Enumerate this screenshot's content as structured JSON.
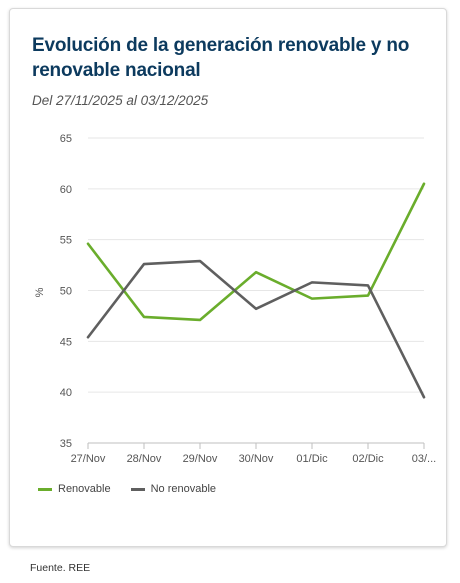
{
  "card": {
    "title": "Evolución de la generación renovable y no renovable nacional",
    "subtitle": "Del 27/11/2025 al 03/12/2025"
  },
  "source": "Fuente. REE",
  "colors": {
    "renovable": "#6aad2c",
    "no_renovable": "#5f5f5f",
    "grid": "#e6e6e6"
  },
  "chart_data": {
    "type": "line",
    "categories": [
      "27/Nov",
      "28/Nov",
      "29/Nov",
      "30/Nov",
      "01/Dic",
      "02/Dic",
      "03/..."
    ],
    "ylabel": "%",
    "ylim": [
      35,
      65
    ],
    "yticks": [
      35,
      40,
      45,
      50,
      55,
      60,
      65
    ],
    "grid": true,
    "legend_position": "bottom-left",
    "series": [
      {
        "name": "Renovable",
        "color": "#6aad2c",
        "values": [
          54.6,
          47.4,
          47.1,
          51.8,
          49.2,
          49.5,
          60.5
        ]
      },
      {
        "name": "No renovable",
        "color": "#5f5f5f",
        "values": [
          45.4,
          52.6,
          52.9,
          48.2,
          50.8,
          50.5,
          39.5
        ]
      }
    ]
  }
}
